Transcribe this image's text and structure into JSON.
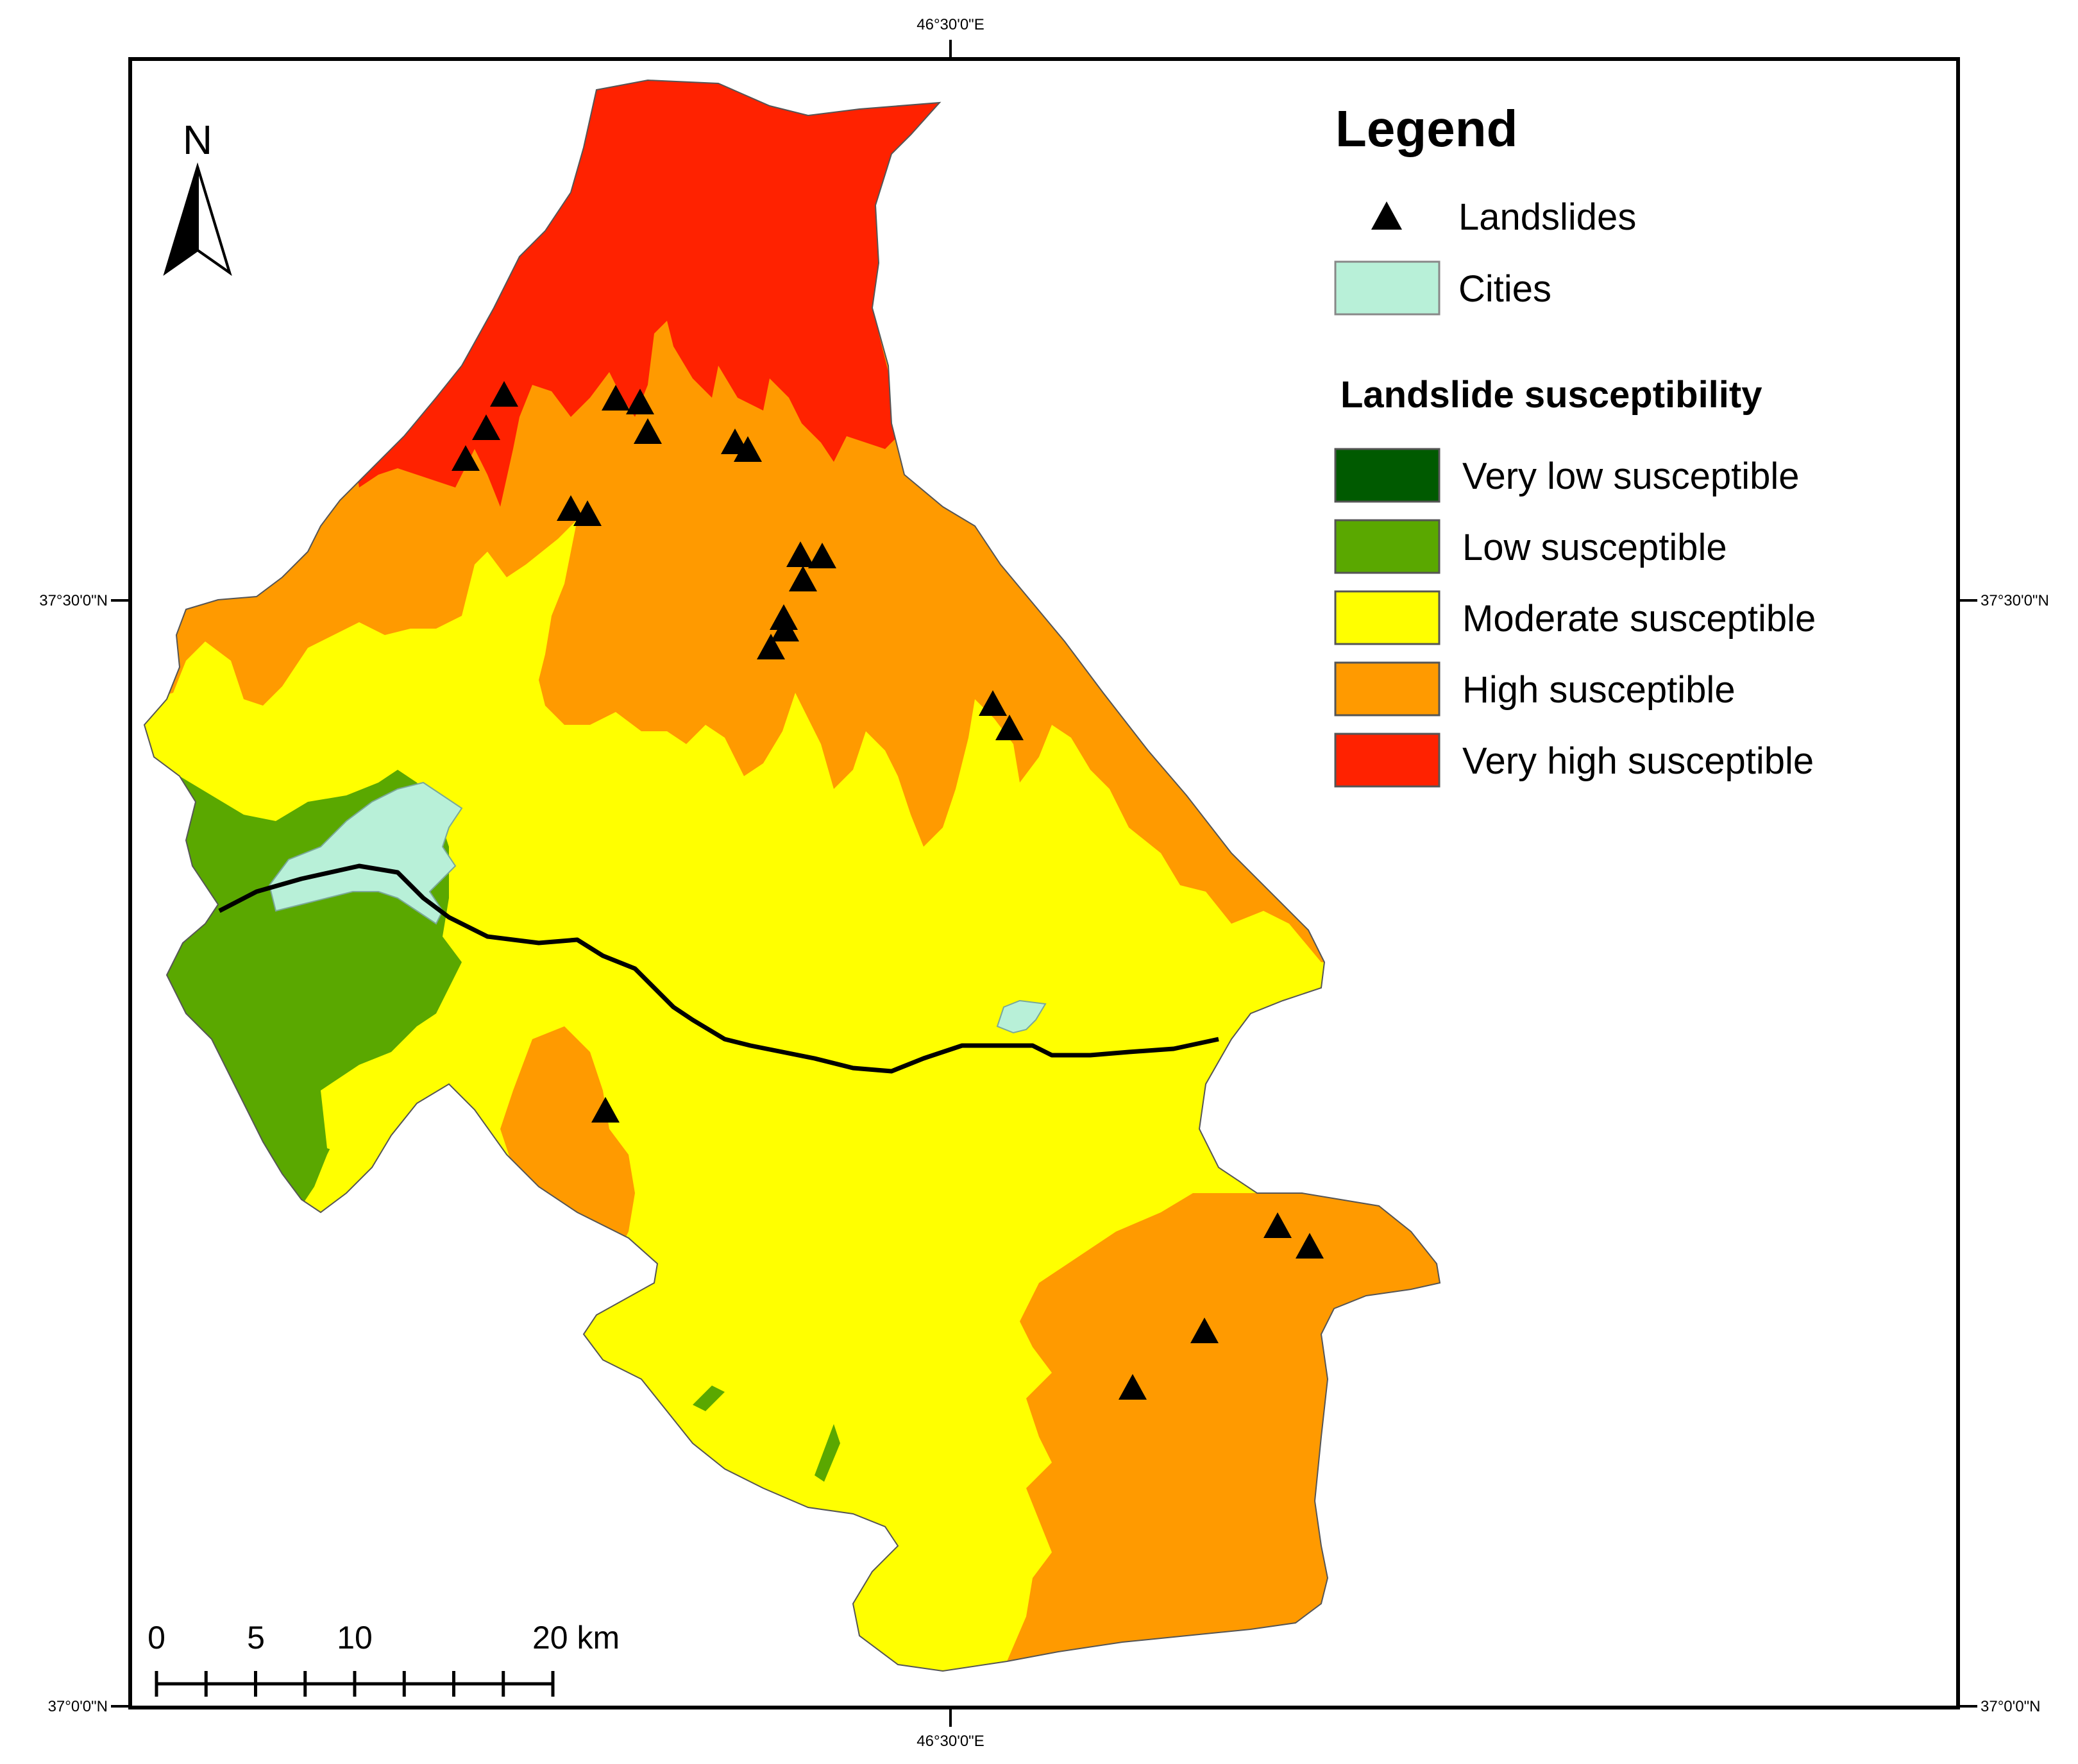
{
  "coordinates": {
    "top_longitude": "46°30'0\"E",
    "bottom_longitude": "46°30'0\"E",
    "left_mid_latitude": "37°30'0\"N",
    "right_mid_latitude": "37°30'0\"N",
    "left_bottom_latitude": "37°0'0\"N",
    "right_bottom_latitude": "37°0'0\"N"
  },
  "north_arrow": {
    "label": "N",
    "icon": "north-arrow-icon"
  },
  "legend": {
    "title": "Legend",
    "landslides_label": "Landslides",
    "cities_label": "Cities",
    "susceptibility_heading": "Landslide susceptibility",
    "classes": [
      {
        "label": "Very low susceptible",
        "color": "#005a00"
      },
      {
        "label": "Low susceptible",
        "color": "#5aa800"
      },
      {
        "label": "Moderate susceptible",
        "color": "#ffff00"
      },
      {
        "label": "High susceptible",
        "color": "#ff9a00"
      },
      {
        "label": "Very high susceptible",
        "color": "#ff2200"
      }
    ],
    "cities_color": "#b8f0d8",
    "landslide_marker_color": "#000000"
  },
  "scale_bar": {
    "ticks": [
      "0",
      "5",
      "10",
      "20 km"
    ]
  },
  "landslide_count": 23
}
